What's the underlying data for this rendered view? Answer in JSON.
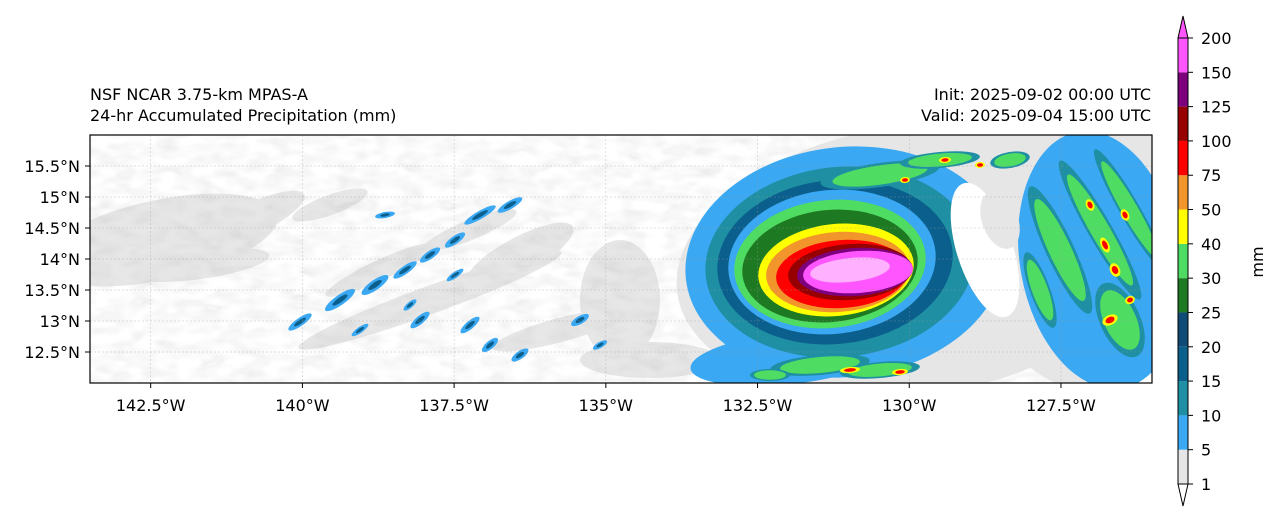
{
  "titles": {
    "left_line1": "NSF NCAR 3.75-km MPAS-A",
    "left_line2": "24-hr Accumulated Precipitation (mm)",
    "right_line1": "Init: 2025-09-02 00:00 UTC",
    "right_line2": "Valid: 2025-09-04 15:00 UTC"
  },
  "map": {
    "lon_range": [
      -143.5,
      -126.0
    ],
    "lat_range": [
      12.0,
      16.0
    ],
    "lon_ticks": [
      {
        "value": -142.5,
        "label": "142.5°W"
      },
      {
        "value": -140.0,
        "label": "140°W"
      },
      {
        "value": -137.5,
        "label": "137.5°W"
      },
      {
        "value": -135.0,
        "label": "135°W"
      },
      {
        "value": -132.5,
        "label": "132.5°W"
      },
      {
        "value": -130.0,
        "label": "130°W"
      },
      {
        "value": -127.5,
        "label": "127.5°W"
      }
    ],
    "lat_ticks": [
      {
        "value": 12.5,
        "label": "12.5°N"
      },
      {
        "value": 13.0,
        "label": "13°N"
      },
      {
        "value": 13.5,
        "label": "13.5°N"
      },
      {
        "value": 14.0,
        "label": "14°N"
      },
      {
        "value": 14.5,
        "label": "14.5°N"
      },
      {
        "value": 15.0,
        "label": "15°N"
      },
      {
        "value": 15.5,
        "label": "15.5°N"
      }
    ],
    "gridlines": true,
    "storm_center": {
      "lon": -131.0,
      "lat": 13.8
    }
  },
  "colorbar": {
    "label": "mm",
    "levels": [
      1,
      5,
      10,
      15,
      20,
      25,
      30,
      40,
      50,
      75,
      100,
      125,
      150,
      200
    ],
    "colors": [
      "#e6e6e6",
      "#3aa8f2",
      "#1f8fa3",
      "#0b5f8c",
      "#0e4c77",
      "#1e7a22",
      "#4fdc63",
      "#ffff00",
      "#f2962c",
      "#ff0000",
      "#960000",
      "#7d007d",
      "#ff55ff"
    ],
    "extend": "both"
  }
}
